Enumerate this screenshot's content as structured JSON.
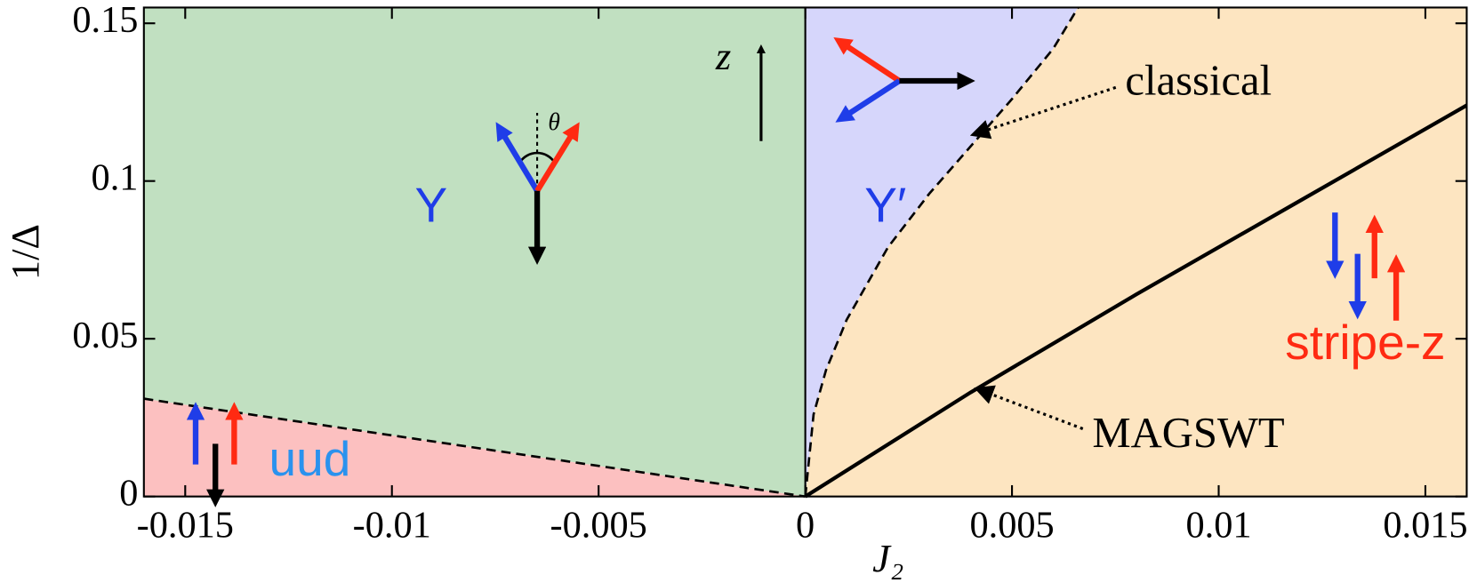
{
  "chart_data": {
    "type": "phase",
    "xlabel": "J₂",
    "ylabel": "1/Δ",
    "xlim": [
      -0.016,
      0.016
    ],
    "ylim": [
      0,
      0.155
    ],
    "xticks": [
      -0.015,
      -0.01,
      -0.005,
      0,
      0.005,
      0.01,
      0.015
    ],
    "yticks": [
      0,
      0.05,
      0.1,
      0.15
    ],
    "series": [
      {
        "name": "classical",
        "color": "#000000",
        "dashed": true,
        "x": [
          0,
          0.0002,
          0.0005,
          0.001,
          0.002,
          0.003,
          0.004,
          0.005,
          0.006,
          0.0066
        ],
        "values": [
          0,
          0.026,
          0.04,
          0.056,
          0.079,
          0.096,
          0.111,
          0.126,
          0.142,
          0.155
        ]
      },
      {
        "name": "MAGSWT",
        "color": "#000000",
        "dashed": false,
        "x": [
          0,
          0.004,
          0.008,
          0.012,
          0.016
        ],
        "values": [
          0,
          0.033,
          0.064,
          0.094,
          0.124
        ]
      },
      {
        "color": "#000000",
        "dashed": true,
        "x": [
          -0.016,
          0
        ],
        "values": [
          0.031,
          0
        ]
      },
      {
        "color": "#000000",
        "dashed": false,
        "x": [
          0,
          0
        ],
        "values": [
          0,
          0.155
        ]
      }
    ],
    "regions": [
      {
        "name": "Y",
        "color": "#1f3de8",
        "fill": "#c1e0c1"
      },
      {
        "name": "Y′",
        "color": "#1f3de8",
        "fill": "#d6d6fb"
      },
      {
        "name": "uud",
        "color": "#2a92ee",
        "fill": "#fcc0c0"
      },
      {
        "name": "stripe-z",
        "color": "#ff2a12",
        "fill": "#fde5c1"
      }
    ],
    "annotations": [
      "z",
      "θ"
    ]
  }
}
